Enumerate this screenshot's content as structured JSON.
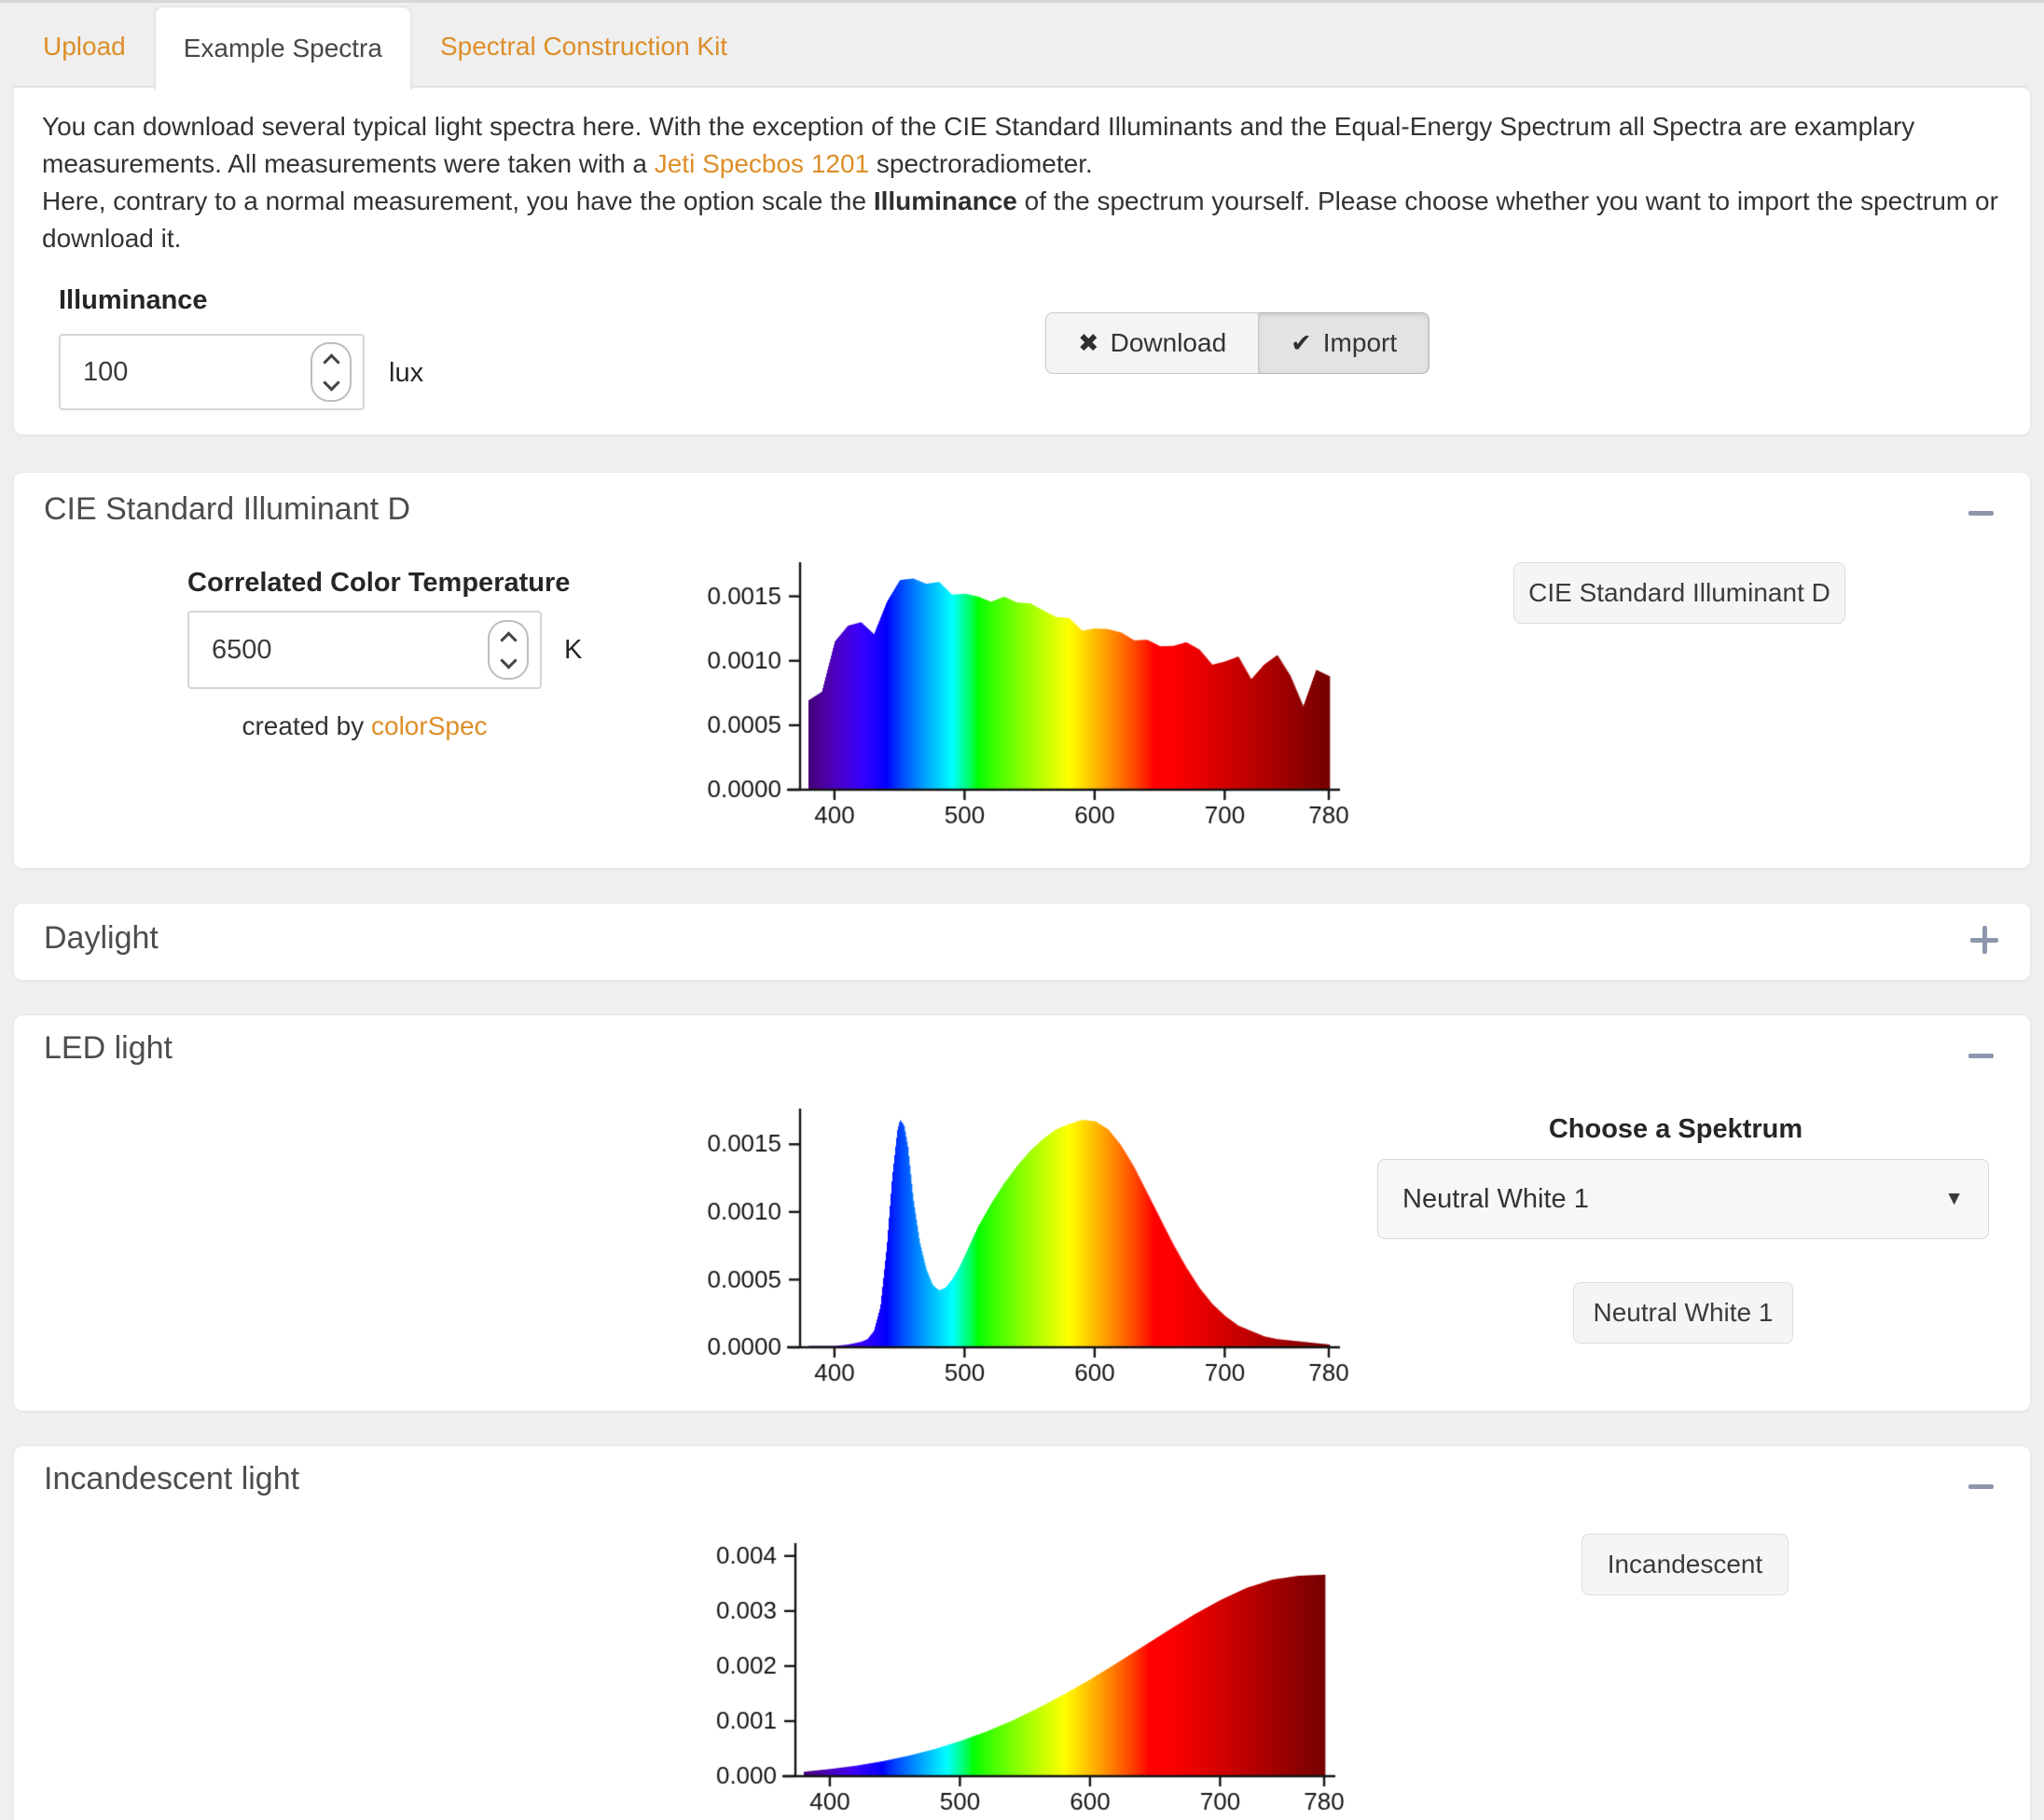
{
  "tabs": [
    {
      "label": "Upload",
      "active": false
    },
    {
      "label": "Example Spectra",
      "active": true
    },
    {
      "label": "Spectral Construction Kit",
      "active": false
    }
  ],
  "intro": {
    "seg1": "You can download several typical light spectra here. With the exception of the CIE Standard Illuminants and the Equal-Energy Spectrum all Spectra are examplary measurements. All measurements were taken with a ",
    "link": "Jeti Specbos 1201",
    "seg2": " spectroradiometer.",
    "seg3": "Here, contrary to a normal measurement, you have the option scale the ",
    "bold": "Illuminance",
    "seg4": " of the spectrum yourself. Please choose whether you want to import the spectrum or download it."
  },
  "illuminance": {
    "label": "Illuminance",
    "value": "100",
    "unit": "lux"
  },
  "actions": {
    "download_label": "Download",
    "import_label": "Import"
  },
  "panels": {
    "cie": {
      "title": "CIE Standard Illuminant D",
      "cct_label": "Correlated Color Temperature",
      "cct_value": "6500",
      "cct_unit": "K",
      "credit_prefix": "created by ",
      "credit_link": "colorSpec",
      "button_label": "CIE Standard Illuminant D"
    },
    "daylight": {
      "title": "Daylight"
    },
    "led": {
      "title": "LED light",
      "choose_label": "Choose a Spektrum",
      "selected_spectrum": "Neutral White 1",
      "button_label": "Neutral White 1"
    },
    "incandescent": {
      "title": "Incandescent light",
      "button_label": "Incandescent"
    }
  },
  "colors": {
    "accent_orange": "#dd8e28",
    "collapse_icon_gray": "#8c97ad"
  },
  "chart_data": [
    {
      "type": "area",
      "title": "CIE Standard Illuminant D spectrum",
      "xlabel": "",
      "ylabel": "",
      "xlim": [
        380,
        780
      ],
      "ylim": [
        0,
        0.00175
      ],
      "xticks": [
        400,
        500,
        600,
        700,
        780
      ],
      "yticks": [
        0,
        0.0005,
        0.001,
        0.0015
      ],
      "ytick_labels": [
        "0.0000",
        "0.0005",
        "0.0010",
        "0.0015"
      ],
      "fill": "spectral-wavelength-colors",
      "x": [
        380,
        390,
        400,
        410,
        420,
        430,
        440,
        450,
        460,
        470,
        480,
        490,
        500,
        510,
        520,
        530,
        540,
        550,
        560,
        570,
        580,
        590,
        600,
        610,
        620,
        630,
        640,
        650,
        660,
        670,
        680,
        690,
        700,
        710,
        720,
        730,
        740,
        750,
        760,
        770,
        780
      ],
      "values": [
        0.000695,
        0.00076,
        0.00115,
        0.001272,
        0.001299,
        0.001205,
        0.001458,
        0.001626,
        0.001638,
        0.001597,
        0.001611,
        0.001512,
        0.00152,
        0.001498,
        0.001457,
        0.001497,
        0.001451,
        0.001446,
        0.00139,
        0.001339,
        0.001331,
        0.001233,
        0.001251,
        0.001245,
        0.001219,
        0.001158,
        0.001163,
        0.001112,
        0.001115,
        0.001144,
        0.001088,
        0.000969,
        0.000995,
        0.001033,
        0.000856,
        0.000971,
        0.001044,
        0.000884,
        0.000645,
        0.000929,
        0.000881
      ]
    },
    {
      "type": "area",
      "title": "LED light spectrum (Neutral White 1)",
      "xlabel": "",
      "ylabel": "",
      "xlim": [
        380,
        780
      ],
      "ylim": [
        0,
        0.00175
      ],
      "xticks": [
        400,
        500,
        600,
        700,
        780
      ],
      "yticks": [
        0,
        0.0005,
        0.001,
        0.0015
      ],
      "ytick_labels": [
        "0.0000",
        "0.0005",
        "0.0010",
        "0.0015"
      ],
      "fill": "spectral-wavelength-colors",
      "x": [
        380,
        400,
        410,
        420,
        425,
        430,
        435,
        440,
        444,
        448,
        450,
        453,
        456,
        460,
        465,
        470,
        475,
        480,
        485,
        490,
        495,
        500,
        510,
        520,
        530,
        540,
        550,
        560,
        570,
        580,
        590,
        600,
        610,
        620,
        630,
        640,
        650,
        660,
        670,
        680,
        690,
        700,
        710,
        720,
        730,
        740,
        750,
        760,
        770,
        780
      ],
      "values": [
        1e-05,
        1e-05,
        2e-05,
        4e-05,
        6e-05,
        0.00012,
        0.0003,
        0.00075,
        0.00125,
        0.0016,
        0.00168,
        0.00164,
        0.00148,
        0.0011,
        0.00078,
        0.00058,
        0.00046,
        0.00042,
        0.00044,
        0.0005,
        0.00058,
        0.00068,
        0.00089,
        0.00106,
        0.00121,
        0.00134,
        0.00145,
        0.00154,
        0.00161,
        0.00165,
        0.00168,
        0.00167,
        0.00161,
        0.00149,
        0.00133,
        0.00114,
        0.00095,
        0.00076,
        0.00059,
        0.00044,
        0.00032,
        0.00023,
        0.00016,
        0.00012,
        8e-05,
        6e-05,
        5e-05,
        4e-05,
        3e-05,
        2e-05
      ]
    },
    {
      "type": "area",
      "title": "Incandescent light spectrum",
      "xlabel": "",
      "ylabel": "",
      "xlim": [
        380,
        780
      ],
      "ylim": [
        0,
        0.0042
      ],
      "xticks": [
        400,
        500,
        600,
        700,
        780
      ],
      "yticks": [
        0,
        0.001,
        0.002,
        0.003,
        0.004
      ],
      "ytick_labels": [
        "0.000",
        "0.001",
        "0.002",
        "0.003",
        "0.004"
      ],
      "fill": "spectral-wavelength-colors",
      "x": [
        380,
        400,
        420,
        440,
        460,
        480,
        500,
        520,
        540,
        560,
        580,
        600,
        620,
        640,
        660,
        680,
        700,
        720,
        740,
        760,
        780
      ],
      "values": [
        8e-05,
        0.00013,
        0.00019,
        0.00027,
        0.00037,
        0.00049,
        0.00064,
        0.00081,
        0.00101,
        0.00124,
        0.00149,
        0.00176,
        0.00205,
        0.00235,
        0.00265,
        0.00294,
        0.0032,
        0.00342,
        0.00357,
        0.00364,
        0.00366
      ]
    }
  ]
}
